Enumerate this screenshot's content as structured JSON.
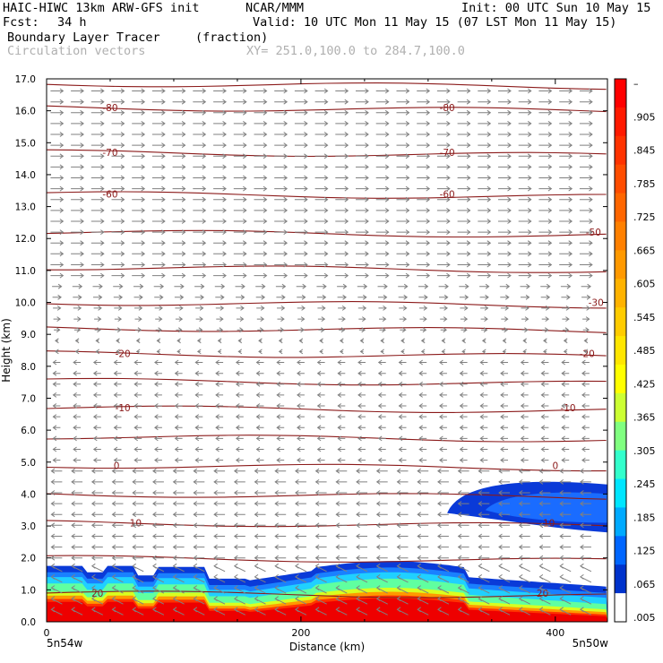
{
  "header": {
    "model": "HAIC-HIWC 13km ARW-GFS init",
    "org": "NCAR/MMM",
    "init": "Init: 00 UTC Sun 10 May 15",
    "fcst_label": "Fcst:",
    "fcst_value": "34 h",
    "valid": "Valid: 10 UTC Mon 11 May 15 (07 LST Mon 11 May 15)",
    "field_name": "Boundary Layer Tracer",
    "field_units": "(fraction)",
    "vector_label": "Circulation vectors",
    "xy_range": "XY= 251.0,100.0 to 284.7,100.0"
  },
  "chart_data": {
    "type": "cross-section",
    "ylabel": "Height (km)",
    "xlabel": "Distance (km)",
    "ylim": [
      0,
      17
    ],
    "xlim": [
      0,
      441
    ],
    "y_ticks": [
      "0.0",
      "1.0",
      "2.0",
      "3.0",
      "4.0",
      "5.0",
      "6.0",
      "7.0",
      "8.0",
      "9.0",
      "10.0",
      "11.0",
      "12.0",
      "13.0",
      "14.0",
      "15.0",
      "16.0",
      "17.0"
    ],
    "x_ticks": [
      0,
      200,
      400
    ],
    "x_end_labels": {
      "left": "5n54w",
      "right": "5n50w"
    },
    "colorbar": {
      "labels": [
        "–",
        ".905",
        ".845",
        ".785",
        ".725",
        ".665",
        ".605",
        ".545",
        ".485",
        ".425",
        ".365",
        ".305",
        ".245",
        ".185",
        ".125",
        ".065",
        ".005"
      ],
      "colors": [
        "#ff0000",
        "#ff1a00",
        "#ff3300",
        "#ff4d00",
        "#ff6600",
        "#ff8000",
        "#ff9900",
        "#ffb300",
        "#ffcc00",
        "#ffe600",
        "#ffff00",
        "#ccff33",
        "#80ff80",
        "#33ffcc",
        "#00e6ff",
        "#00aaff",
        "#0066ff",
        "#0033cc",
        "#ffffff"
      ]
    },
    "temperature_contours": [
      {
        "label": "-80",
        "height_km": 16.1
      },
      {
        "label": "-70",
        "height_km": 14.7
      },
      {
        "label": "-60",
        "height_km": 13.4
      },
      {
        "label": "-50",
        "height_km": 12.2
      },
      {
        "label": "-30",
        "height_km": 10.0
      },
      {
        "label": "-20",
        "height_km": 8.4
      },
      {
        "label": "-10",
        "height_km": 6.7
      },
      {
        "label": "0",
        "height_km": 4.9
      },
      {
        "label": "10",
        "height_km": 3.1
      },
      {
        "label": "20",
        "height_km": 0.9
      }
    ],
    "contour_color": "#8b1a1a",
    "vector_color": "#808080",
    "tracer_boundary_layer_top_km": 1.8,
    "elevated_tracer_layer": {
      "x_start_km": 315,
      "x_end_km": 441,
      "bottom_km": 2.8,
      "top_km": 4.4
    }
  }
}
